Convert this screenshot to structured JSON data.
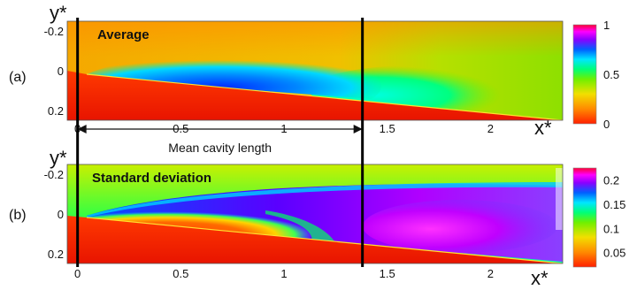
{
  "panels": [
    {
      "id": "a",
      "label": "(a)",
      "overlay_text": "Average",
      "y_axis_label": "y*",
      "y_ticks": [
        "-0.2",
        "0",
        "0.2"
      ],
      "x_ticks": [
        "0",
        "0.5",
        "1",
        "1.5",
        "2"
      ],
      "colorbar_ticks": [
        "1",
        "0.5",
        "0"
      ]
    },
    {
      "id": "b",
      "label": "(b)",
      "overlay_text": "Standard deviation",
      "y_axis_label": "y*",
      "x_axis_label": "x*",
      "y_ticks": [
        "-0.2",
        "0",
        "0.2"
      ],
      "x_ticks": [
        "0",
        "0.5",
        "1",
        "1.5",
        "2"
      ],
      "colorbar_ticks": [
        "0.2",
        "0.15",
        "0.1",
        "0.05"
      ]
    }
  ],
  "top_x_axis_label": "x*",
  "annotation": {
    "text": "Mean cavity length",
    "start_x": 0,
    "end_x": 1.38
  },
  "x_range": [
    -0.05,
    2.35
  ],
  "y_range": [
    -0.25,
    0.25
  ],
  "colors": {
    "colormap": [
      "#e01f00",
      "#ff7a00",
      "#f3c600",
      "#9fe51b",
      "#00ff55",
      "#00e2ff",
      "#0066ff",
      "#7a00ff",
      "#ff00ff",
      "#ff0066"
    ]
  }
}
